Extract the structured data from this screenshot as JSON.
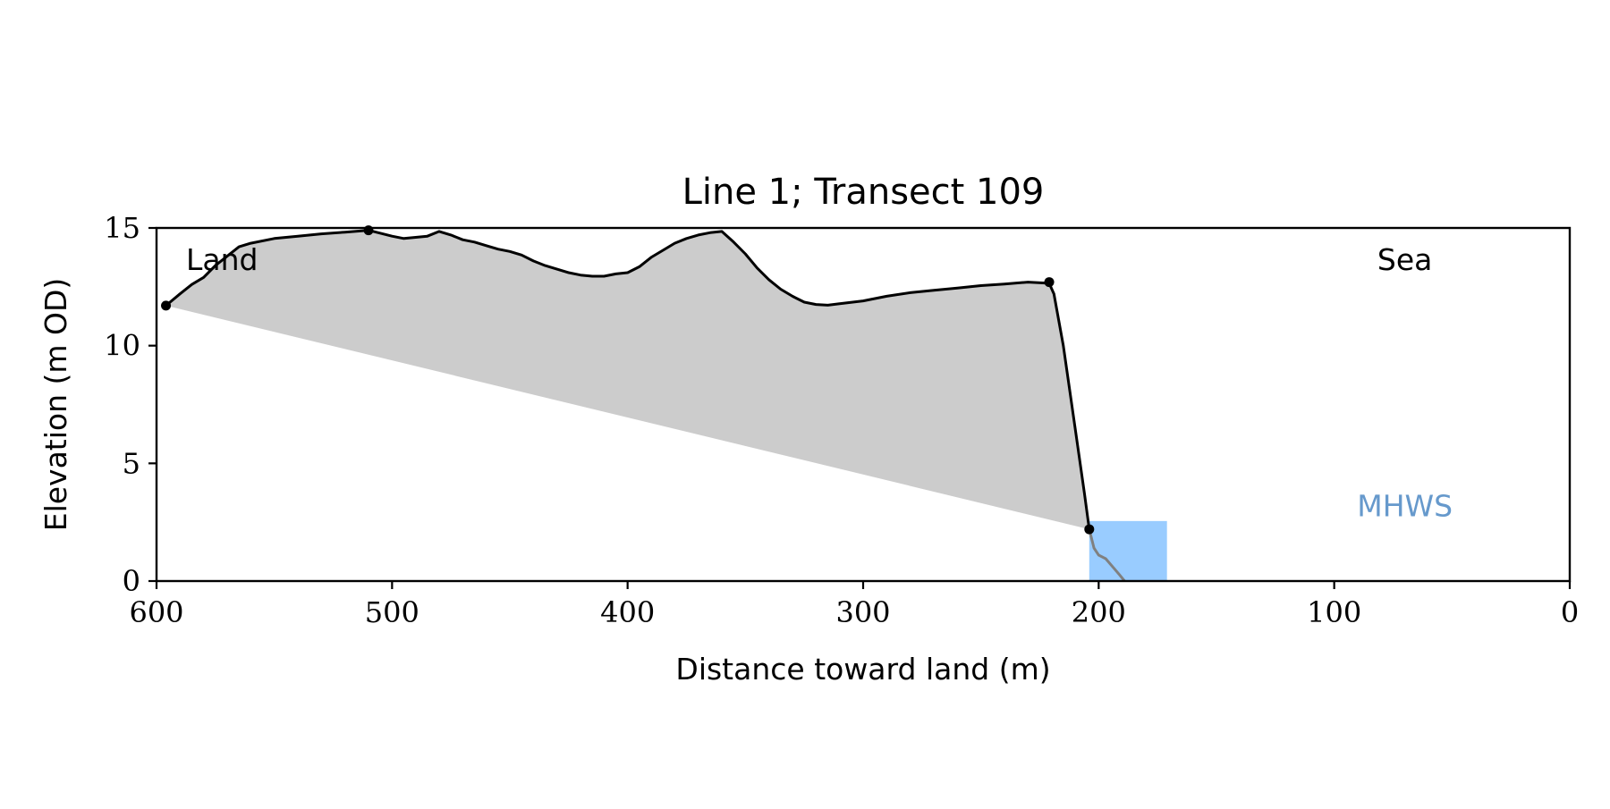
{
  "chart_data": {
    "type": "area",
    "title": "Line 1; Transect 109",
    "xlabel": "Distance toward land (m)",
    "ylabel": "Elevation (m OD)",
    "xlim": [
      600,
      0
    ],
    "ylim": [
      0,
      15
    ],
    "x_ticks": [
      600,
      500,
      400,
      300,
      200,
      100,
      0
    ],
    "y_ticks": [
      0,
      5,
      10,
      15
    ],
    "x_tick_labels": [
      "600",
      "500",
      "400",
      "300",
      "200",
      "100",
      "0"
    ],
    "y_tick_labels": [
      "0",
      "5",
      "10",
      "15"
    ],
    "grid": false,
    "annotations": {
      "land_label": "Land",
      "sea_label": "Sea",
      "mhws_label": "MHWS"
    },
    "colors": {
      "profile_line": "#000000",
      "fill_area": "#cccccc",
      "water": "#99ccff",
      "mhws_text": "#6699cc",
      "submerged_profile": "#808080"
    },
    "mhws": {
      "x_start": 204,
      "x_end": 171,
      "elevation": 2.55
    },
    "series": [
      {
        "role": "profile",
        "x": [
          596,
          590,
          585,
          580,
          575,
          570,
          565,
          560,
          550,
          540,
          530,
          520,
          510,
          500,
          495,
          490,
          485,
          480,
          475,
          470,
          465,
          460,
          455,
          450,
          445,
          440,
          435,
          430,
          425,
          420,
          415,
          410,
          405,
          400,
          395,
          390,
          385,
          380,
          375,
          370,
          365,
          360,
          355,
          350,
          345,
          340,
          335,
          330,
          325,
          320,
          315,
          310,
          300,
          290,
          280,
          270,
          260,
          250,
          240,
          230,
          221,
          219,
          215,
          210,
          206,
          204
        ],
        "y": [
          11.7,
          12.2,
          12.6,
          12.9,
          13.4,
          13.8,
          14.2,
          14.35,
          14.55,
          14.65,
          14.75,
          14.82,
          14.9,
          14.65,
          14.55,
          14.6,
          14.65,
          14.85,
          14.7,
          14.5,
          14.4,
          14.25,
          14.1,
          14.0,
          13.85,
          13.6,
          13.4,
          13.25,
          13.1,
          13.0,
          12.95,
          12.95,
          13.05,
          13.1,
          13.35,
          13.75,
          14.05,
          14.35,
          14.55,
          14.7,
          14.8,
          14.85,
          14.4,
          13.9,
          13.3,
          12.8,
          12.4,
          12.1,
          11.85,
          11.75,
          11.72,
          11.78,
          11.9,
          12.1,
          12.25,
          12.35,
          12.45,
          12.55,
          12.62,
          12.7,
          12.65,
          12.2,
          10.0,
          6.5,
          3.7,
          2.2
        ]
      },
      {
        "role": "baseline",
        "x": [
          596,
          204
        ],
        "y": [
          11.7,
          2.2
        ]
      },
      {
        "role": "submerged_profile",
        "x": [
          204,
          202,
          200,
          197,
          194,
          191,
          189
        ],
        "y": [
          2.2,
          1.4,
          1.1,
          0.95,
          0.6,
          0.25,
          0.0
        ]
      }
    ],
    "marker_points": [
      {
        "x": 596,
        "y": 11.7
      },
      {
        "x": 510,
        "y": 14.9
      },
      {
        "x": 221,
        "y": 12.7
      },
      {
        "x": 204,
        "y": 2.2
      }
    ]
  }
}
